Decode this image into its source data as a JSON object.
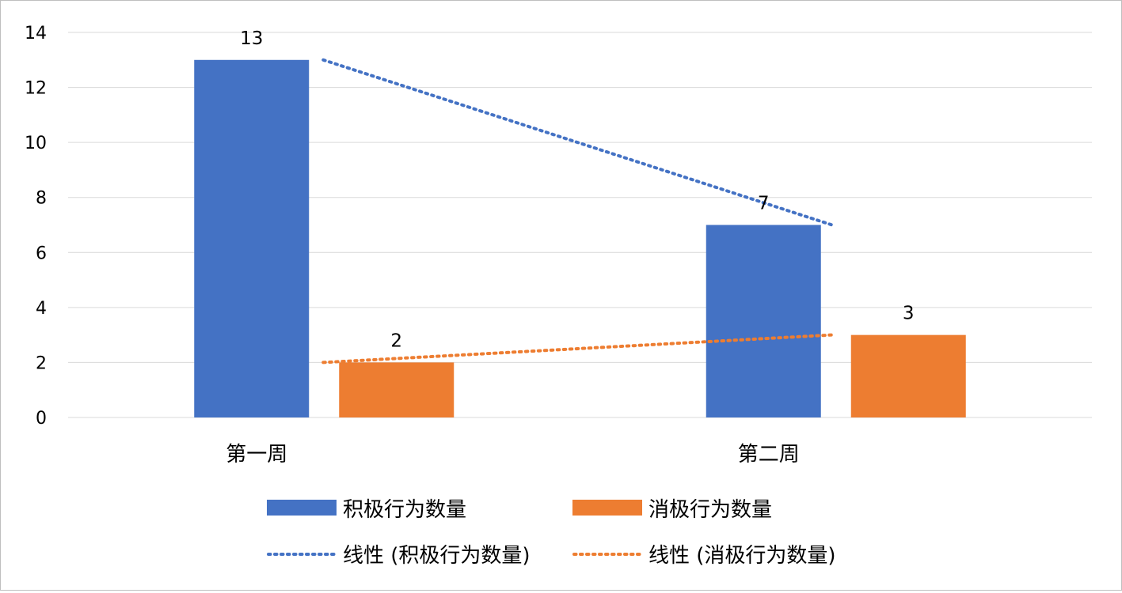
{
  "chart_data": {
    "type": "bar",
    "categories": [
      "第一周",
      "第二周"
    ],
    "series": [
      {
        "name": "积极行为数量",
        "values": [
          13,
          7
        ],
        "color": "#4472C4"
      },
      {
        "name": "消极行为数量",
        "values": [
          2,
          3
        ],
        "color": "#ED7D31"
      }
    ],
    "trendlines": [
      {
        "name": "线性 (积极行为数量)",
        "series_index": 0,
        "style": "dotted",
        "color": "#4472C4"
      },
      {
        "name": "线性 (消极行为数量)",
        "series_index": 1,
        "style": "dotted",
        "color": "#ED7D31"
      }
    ],
    "ylim": [
      0,
      14
    ],
    "yticks": [
      0,
      2,
      4,
      6,
      8,
      10,
      12,
      14
    ],
    "grid": true,
    "data_labels": true,
    "legend_position": "bottom"
  }
}
